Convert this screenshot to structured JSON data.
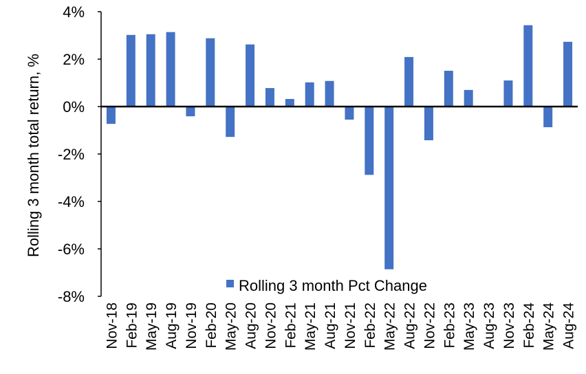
{
  "chart_data": {
    "type": "bar",
    "title": "",
    "xlabel": "",
    "ylabel": "Rolling 3 month total return, %",
    "ylim": [
      -8,
      4
    ],
    "yticks": [
      "4%",
      "2%",
      "0%",
      "-2%",
      "-4%",
      "-6%",
      "-8%"
    ],
    "ytick_values": [
      4,
      2,
      0,
      -2,
      -4,
      -6,
      -8
    ],
    "grid": false,
    "legend_position": "bottom-center",
    "bar_color": "#4472C4",
    "categories": [
      "Nov-18",
      "Feb-19",
      "May-19",
      "Aug-19",
      "Nov-19",
      "Feb-20",
      "May-20",
      "Aug-20",
      "Nov-20",
      "Feb-21",
      "May-21",
      "Aug-21",
      "Nov-21",
      "Feb-22",
      "May-22",
      "Aug-22",
      "Nov-22",
      "Feb-23",
      "May-23",
      "Aug-23",
      "Nov-23",
      "Feb-24",
      "May-24",
      "Aug-24"
    ],
    "series": [
      {
        "name": "Rolling 3 month Pct Change",
        "values": [
          -0.73,
          3.02,
          3.05,
          3.14,
          -0.41,
          2.88,
          -1.28,
          2.62,
          0.78,
          0.32,
          1.02,
          1.08,
          -0.55,
          -2.88,
          -6.86,
          2.09,
          -1.42,
          1.51,
          0.7,
          0.0,
          1.1,
          3.43,
          -0.87,
          2.73
        ]
      }
    ]
  }
}
